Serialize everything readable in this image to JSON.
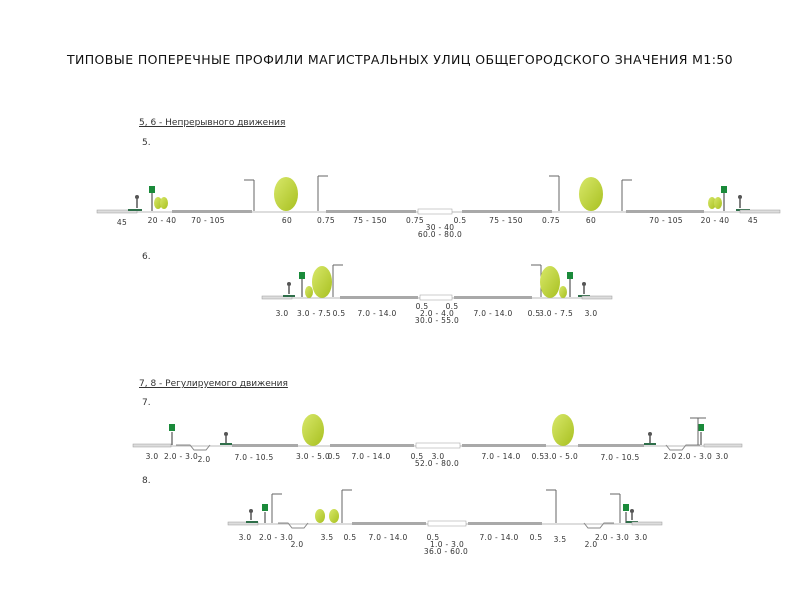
{
  "title": "ТИПОВЫЕ ПОПЕРЕЧНЫЕ ПРОФИЛИ МАГИСТРАЛЬНЫХ УЛИЦ ОБЩЕГОРОДСКОГО ЗНАЧЕНИЯ М1:50",
  "sections": {
    "continuous": "5, 6 - Непрерывного движения",
    "regulated": "7, 8 - Регулируемого движения"
  },
  "profiles": {
    "p5": {
      "label": "5.",
      "dims": [
        "45",
        "20 - 40",
        "70 - 105",
        "60",
        "0.75",
        "75 - 150",
        "0.75",
        "30 - 40",
        "60.0 - 80.0",
        "0.5",
        "75 - 150",
        "0.75",
        "60",
        "70 - 105",
        "20 - 40",
        "45"
      ]
    },
    "p6": {
      "label": "6.",
      "dims": [
        "3.0",
        "3.0 - 7.5",
        "0.5",
        "7.0 - 14.0",
        "0.5",
        "0.5",
        "2.0 - 4.0",
        "30.0 - 55.0",
        "7.0 - 14.0",
        "0.5",
        "3.0 - 7.5",
        "3.0"
      ]
    },
    "p7": {
      "label": "7.",
      "dims": [
        "3.0",
        "2.0 - 3.0",
        "2.0",
        "7.0 - 10.5",
        "3.0 - 5.0",
        "0.5",
        "7.0 - 14.0",
        "0.5",
        "3.0",
        "52.0 - 80.0",
        "7.0 - 14.0",
        "0.5",
        "3.0 - 5.0",
        "7.0 - 10.5",
        "2.0",
        "2.0 - 3.0",
        "3.0"
      ]
    },
    "p8": {
      "label": "8.",
      "dims": [
        "3.0",
        "2.0 - 3.0",
        "2.0",
        "3.5",
        "0.5",
        "7.0 - 14.0",
        "0.5",
        "1.0 - 3.0",
        "36.0 - 60.0",
        "7.0 - 14.0",
        "0.5",
        "3.5",
        "2.0",
        "2.0 - 3.0",
        "3.0"
      ]
    }
  },
  "colors": {
    "road": "#a9a9a9",
    "tree": "#b5cc2e",
    "sign": "#1a8a3a",
    "grass": "#2f6f4a"
  }
}
